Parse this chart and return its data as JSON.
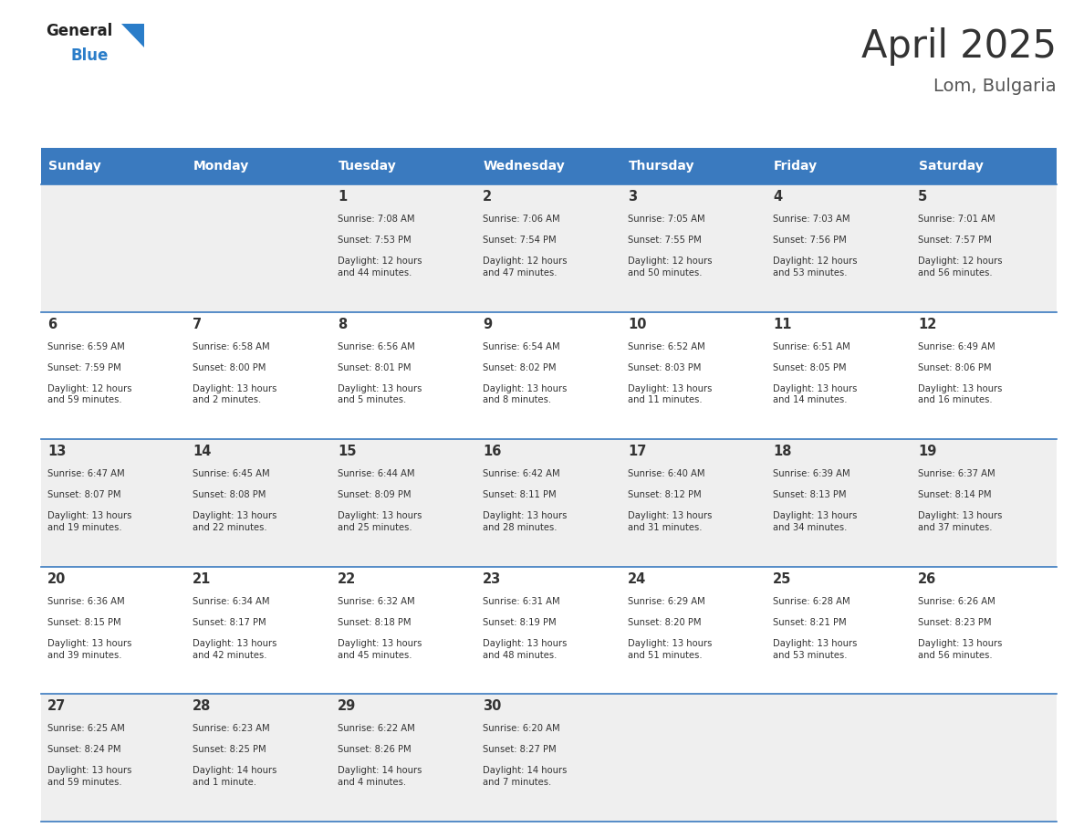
{
  "title": "April 2025",
  "subtitle": "Lom, Bulgaria",
  "header_color": "#3a7abf",
  "header_text_color": "#ffffff",
  "cell_bg_even": "#efefef",
  "cell_bg_odd": "#ffffff",
  "border_color": "#3a7abf",
  "text_color": "#333333",
  "days_of_week": [
    "Sunday",
    "Monday",
    "Tuesday",
    "Wednesday",
    "Thursday",
    "Friday",
    "Saturday"
  ],
  "weeks": [
    [
      {
        "day": "",
        "sunrise": "",
        "sunset": "",
        "daylight": ""
      },
      {
        "day": "",
        "sunrise": "",
        "sunset": "",
        "daylight": ""
      },
      {
        "day": "1",
        "sunrise": "Sunrise: 7:08 AM",
        "sunset": "Sunset: 7:53 PM",
        "daylight": "Daylight: 12 hours\nand 44 minutes."
      },
      {
        "day": "2",
        "sunrise": "Sunrise: 7:06 AM",
        "sunset": "Sunset: 7:54 PM",
        "daylight": "Daylight: 12 hours\nand 47 minutes."
      },
      {
        "day": "3",
        "sunrise": "Sunrise: 7:05 AM",
        "sunset": "Sunset: 7:55 PM",
        "daylight": "Daylight: 12 hours\nand 50 minutes."
      },
      {
        "day": "4",
        "sunrise": "Sunrise: 7:03 AM",
        "sunset": "Sunset: 7:56 PM",
        "daylight": "Daylight: 12 hours\nand 53 minutes."
      },
      {
        "day": "5",
        "sunrise": "Sunrise: 7:01 AM",
        "sunset": "Sunset: 7:57 PM",
        "daylight": "Daylight: 12 hours\nand 56 minutes."
      }
    ],
    [
      {
        "day": "6",
        "sunrise": "Sunrise: 6:59 AM",
        "sunset": "Sunset: 7:59 PM",
        "daylight": "Daylight: 12 hours\nand 59 minutes."
      },
      {
        "day": "7",
        "sunrise": "Sunrise: 6:58 AM",
        "sunset": "Sunset: 8:00 PM",
        "daylight": "Daylight: 13 hours\nand 2 minutes."
      },
      {
        "day": "8",
        "sunrise": "Sunrise: 6:56 AM",
        "sunset": "Sunset: 8:01 PM",
        "daylight": "Daylight: 13 hours\nand 5 minutes."
      },
      {
        "day": "9",
        "sunrise": "Sunrise: 6:54 AM",
        "sunset": "Sunset: 8:02 PM",
        "daylight": "Daylight: 13 hours\nand 8 minutes."
      },
      {
        "day": "10",
        "sunrise": "Sunrise: 6:52 AM",
        "sunset": "Sunset: 8:03 PM",
        "daylight": "Daylight: 13 hours\nand 11 minutes."
      },
      {
        "day": "11",
        "sunrise": "Sunrise: 6:51 AM",
        "sunset": "Sunset: 8:05 PM",
        "daylight": "Daylight: 13 hours\nand 14 minutes."
      },
      {
        "day": "12",
        "sunrise": "Sunrise: 6:49 AM",
        "sunset": "Sunset: 8:06 PM",
        "daylight": "Daylight: 13 hours\nand 16 minutes."
      }
    ],
    [
      {
        "day": "13",
        "sunrise": "Sunrise: 6:47 AM",
        "sunset": "Sunset: 8:07 PM",
        "daylight": "Daylight: 13 hours\nand 19 minutes."
      },
      {
        "day": "14",
        "sunrise": "Sunrise: 6:45 AM",
        "sunset": "Sunset: 8:08 PM",
        "daylight": "Daylight: 13 hours\nand 22 minutes."
      },
      {
        "day": "15",
        "sunrise": "Sunrise: 6:44 AM",
        "sunset": "Sunset: 8:09 PM",
        "daylight": "Daylight: 13 hours\nand 25 minutes."
      },
      {
        "day": "16",
        "sunrise": "Sunrise: 6:42 AM",
        "sunset": "Sunset: 8:11 PM",
        "daylight": "Daylight: 13 hours\nand 28 minutes."
      },
      {
        "day": "17",
        "sunrise": "Sunrise: 6:40 AM",
        "sunset": "Sunset: 8:12 PM",
        "daylight": "Daylight: 13 hours\nand 31 minutes."
      },
      {
        "day": "18",
        "sunrise": "Sunrise: 6:39 AM",
        "sunset": "Sunset: 8:13 PM",
        "daylight": "Daylight: 13 hours\nand 34 minutes."
      },
      {
        "day": "19",
        "sunrise": "Sunrise: 6:37 AM",
        "sunset": "Sunset: 8:14 PM",
        "daylight": "Daylight: 13 hours\nand 37 minutes."
      }
    ],
    [
      {
        "day": "20",
        "sunrise": "Sunrise: 6:36 AM",
        "sunset": "Sunset: 8:15 PM",
        "daylight": "Daylight: 13 hours\nand 39 minutes."
      },
      {
        "day": "21",
        "sunrise": "Sunrise: 6:34 AM",
        "sunset": "Sunset: 8:17 PM",
        "daylight": "Daylight: 13 hours\nand 42 minutes."
      },
      {
        "day": "22",
        "sunrise": "Sunrise: 6:32 AM",
        "sunset": "Sunset: 8:18 PM",
        "daylight": "Daylight: 13 hours\nand 45 minutes."
      },
      {
        "day": "23",
        "sunrise": "Sunrise: 6:31 AM",
        "sunset": "Sunset: 8:19 PM",
        "daylight": "Daylight: 13 hours\nand 48 minutes."
      },
      {
        "day": "24",
        "sunrise": "Sunrise: 6:29 AM",
        "sunset": "Sunset: 8:20 PM",
        "daylight": "Daylight: 13 hours\nand 51 minutes."
      },
      {
        "day": "25",
        "sunrise": "Sunrise: 6:28 AM",
        "sunset": "Sunset: 8:21 PM",
        "daylight": "Daylight: 13 hours\nand 53 minutes."
      },
      {
        "day": "26",
        "sunrise": "Sunrise: 6:26 AM",
        "sunset": "Sunset: 8:23 PM",
        "daylight": "Daylight: 13 hours\nand 56 minutes."
      }
    ],
    [
      {
        "day": "27",
        "sunrise": "Sunrise: 6:25 AM",
        "sunset": "Sunset: 8:24 PM",
        "daylight": "Daylight: 13 hours\nand 59 minutes."
      },
      {
        "day": "28",
        "sunrise": "Sunrise: 6:23 AM",
        "sunset": "Sunset: 8:25 PM",
        "daylight": "Daylight: 14 hours\nand 1 minute."
      },
      {
        "day": "29",
        "sunrise": "Sunrise: 6:22 AM",
        "sunset": "Sunset: 8:26 PM",
        "daylight": "Daylight: 14 hours\nand 4 minutes."
      },
      {
        "day": "30",
        "sunrise": "Sunrise: 6:20 AM",
        "sunset": "Sunset: 8:27 PM",
        "daylight": "Daylight: 14 hours\nand 7 minutes."
      },
      {
        "day": "",
        "sunrise": "",
        "sunset": "",
        "daylight": ""
      },
      {
        "day": "",
        "sunrise": "",
        "sunset": "",
        "daylight": ""
      },
      {
        "day": "",
        "sunrise": "",
        "sunset": "",
        "daylight": ""
      }
    ]
  ],
  "logo_general_color": "#222222",
  "logo_blue_color": "#2a7dc9",
  "logo_triangle_color": "#2a7dc9"
}
